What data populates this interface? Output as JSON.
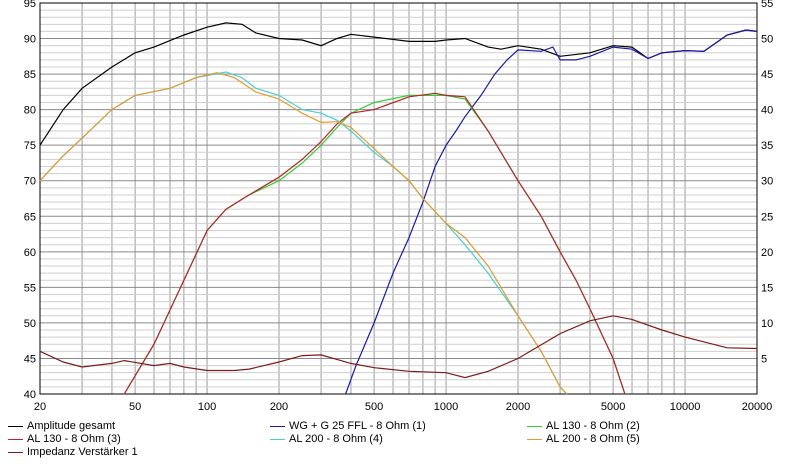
{
  "chart_data": {
    "type": "line",
    "x_scale": "log",
    "xlim": [
      20,
      20000
    ],
    "ylim_left": [
      40,
      95
    ],
    "ylim_right": [
      0,
      55
    ],
    "grid": true,
    "legend_position": "bottom",
    "x_ticks": [
      "20",
      "50",
      "100",
      "200",
      "500",
      "1000",
      "2000",
      "5000",
      "10000",
      "20000"
    ],
    "y_ticks_left": [
      "40",
      "45",
      "50",
      "55",
      "60",
      "65",
      "70",
      "75",
      "80",
      "85",
      "90",
      "95"
    ],
    "y_ticks_right": [
      "5",
      "10",
      "15",
      "20",
      "25",
      "30",
      "35",
      "40",
      "45",
      "50",
      "55"
    ],
    "series": [
      {
        "name": "Amplitude gesamt",
        "color": "#000000",
        "axis": "left",
        "points": [
          [
            20,
            75
          ],
          [
            25,
            80
          ],
          [
            30,
            83
          ],
          [
            40,
            86
          ],
          [
            50,
            88
          ],
          [
            60,
            88.8
          ],
          [
            80,
            90.5
          ],
          [
            100,
            91.6
          ],
          [
            120,
            92.2
          ],
          [
            140,
            92
          ],
          [
            160,
            90.8
          ],
          [
            200,
            90
          ],
          [
            250,
            89.8
          ],
          [
            300,
            89
          ],
          [
            350,
            90
          ],
          [
            400,
            90.6
          ],
          [
            500,
            90.2
          ],
          [
            700,
            89.6
          ],
          [
            900,
            89.6
          ],
          [
            1000,
            89.8
          ],
          [
            1200,
            90
          ],
          [
            1500,
            88.8
          ],
          [
            1700,
            88.5
          ],
          [
            2000,
            89
          ],
          [
            2500,
            88.5
          ],
          [
            3000,
            87.5
          ],
          [
            4000,
            88
          ],
          [
            5000,
            89
          ],
          [
            6000,
            88.8
          ],
          [
            7000,
            87.2
          ],
          [
            8000,
            88
          ],
          [
            10000,
            88.3
          ],
          [
            12000,
            88.2
          ],
          [
            15000,
            90.5
          ],
          [
            18000,
            91.2
          ],
          [
            20000,
            91
          ]
        ]
      },
      {
        "name": "WG + G 25 FFL - 8 Ohm (1)",
        "color": "#1a1aa6",
        "axis": "left",
        "points": [
          [
            380,
            40
          ],
          [
            420,
            44
          ],
          [
            500,
            50
          ],
          [
            600,
            57
          ],
          [
            700,
            62
          ],
          [
            800,
            67
          ],
          [
            900,
            72
          ],
          [
            1000,
            75
          ],
          [
            1100,
            77
          ],
          [
            1200,
            79
          ],
          [
            1400,
            82
          ],
          [
            1600,
            85
          ],
          [
            1800,
            87
          ],
          [
            2000,
            88.4
          ],
          [
            2500,
            88.2
          ],
          [
            2800,
            88.8
          ],
          [
            3000,
            87
          ],
          [
            3500,
            87
          ],
          [
            4000,
            87.5
          ],
          [
            5000,
            88.8
          ],
          [
            6000,
            88.5
          ],
          [
            7000,
            87.2
          ],
          [
            8000,
            88
          ],
          [
            10000,
            88.3
          ],
          [
            12000,
            88.2
          ],
          [
            15000,
            90.5
          ],
          [
            18000,
            91.2
          ],
          [
            20000,
            91
          ]
        ]
      },
      {
        "name": "AL 130 - 8 Ohm (2)",
        "color": "#33cc33",
        "axis": "left",
        "points": [
          [
            45,
            40
          ],
          [
            60,
            47
          ],
          [
            80,
            56
          ],
          [
            100,
            63
          ],
          [
            120,
            66
          ],
          [
            150,
            68
          ],
          [
            200,
            70
          ],
          [
            250,
            72.5
          ],
          [
            300,
            75
          ],
          [
            350,
            77.5
          ],
          [
            400,
            79.5
          ],
          [
            500,
            81
          ],
          [
            700,
            82
          ],
          [
            900,
            82
          ],
          [
            1000,
            82
          ],
          [
            1200,
            81.5
          ],
          [
            1500,
            77
          ],
          [
            2000,
            70
          ],
          [
            2500,
            65
          ],
          [
            3000,
            60
          ],
          [
            3500,
            56
          ],
          [
            4000,
            52
          ],
          [
            5000,
            45
          ],
          [
            5600,
            40
          ]
        ]
      },
      {
        "name": "AL 130 - 8 Ohm (3)",
        "color": "#b3262a",
        "axis": "left",
        "points": [
          [
            45,
            40
          ],
          [
            60,
            47
          ],
          [
            80,
            56
          ],
          [
            100,
            63
          ],
          [
            120,
            66
          ],
          [
            150,
            68
          ],
          [
            200,
            70.5
          ],
          [
            250,
            73
          ],
          [
            300,
            75.5
          ],
          [
            350,
            78
          ],
          [
            400,
            79.5
          ],
          [
            500,
            80
          ],
          [
            700,
            81.8
          ],
          [
            900,
            82.3
          ],
          [
            1000,
            82
          ],
          [
            1200,
            81.8
          ],
          [
            1500,
            77
          ],
          [
            2000,
            70
          ],
          [
            2500,
            65
          ],
          [
            3000,
            60
          ],
          [
            3500,
            56
          ],
          [
            4000,
            52
          ],
          [
            5000,
            45
          ],
          [
            5600,
            40
          ]
        ]
      },
      {
        "name": "AL 200 - 8 Ohm (4)",
        "color": "#46cfd8",
        "axis": "left",
        "points": [
          [
            20,
            70
          ],
          [
            25,
            73.5
          ],
          [
            30,
            76
          ],
          [
            40,
            80
          ],
          [
            50,
            82
          ],
          [
            70,
            83
          ],
          [
            90,
            84.5
          ],
          [
            120,
            85.3
          ],
          [
            140,
            84.5
          ],
          [
            160,
            83
          ],
          [
            200,
            82
          ],
          [
            250,
            80
          ],
          [
            300,
            79.5
          ],
          [
            350,
            78.5
          ],
          [
            400,
            77
          ],
          [
            500,
            74
          ],
          [
            600,
            72
          ],
          [
            700,
            70
          ],
          [
            800,
            67.5
          ],
          [
            1000,
            64
          ],
          [
            1200,
            61
          ],
          [
            1500,
            57
          ],
          [
            2000,
            51
          ],
          [
            2500,
            46
          ],
          [
            3000,
            41
          ],
          [
            3200,
            40
          ]
        ]
      },
      {
        "name": "AL 200 - 8 Ohm (5)",
        "color": "#e39a2e",
        "axis": "left",
        "points": [
          [
            20,
            70
          ],
          [
            25,
            73.5
          ],
          [
            30,
            76
          ],
          [
            40,
            80
          ],
          [
            50,
            82
          ],
          [
            70,
            83
          ],
          [
            90,
            84.5
          ],
          [
            110,
            85.2
          ],
          [
            130,
            84.5
          ],
          [
            160,
            82.5
          ],
          [
            200,
            81.5
          ],
          [
            250,
            79.5
          ],
          [
            300,
            78.2
          ],
          [
            350,
            78.3
          ],
          [
            400,
            77.5
          ],
          [
            500,
            74.5
          ],
          [
            600,
            72
          ],
          [
            700,
            70
          ],
          [
            800,
            67.5
          ],
          [
            1000,
            64
          ],
          [
            1200,
            62
          ],
          [
            1500,
            58
          ],
          [
            2000,
            51
          ],
          [
            2500,
            46
          ],
          [
            3000,
            41
          ],
          [
            3200,
            40
          ]
        ]
      },
      {
        "name": "Impedanz Verstärker 1",
        "color": "#7a1c1c",
        "axis": "right",
        "points": [
          [
            20,
            6
          ],
          [
            25,
            4.5
          ],
          [
            30,
            3.8
          ],
          [
            40,
            4.3
          ],
          [
            45,
            4.7
          ],
          [
            60,
            4
          ],
          [
            70,
            4.3
          ],
          [
            80,
            3.8
          ],
          [
            100,
            3.3
          ],
          [
            130,
            3.3
          ],
          [
            150,
            3.5
          ],
          [
            200,
            4.5
          ],
          [
            250,
            5.4
          ],
          [
            300,
            5.5
          ],
          [
            400,
            4.3
          ],
          [
            500,
            3.7
          ],
          [
            700,
            3.2
          ],
          [
            1000,
            3
          ],
          [
            1200,
            2.3
          ],
          [
            1500,
            3.2
          ],
          [
            2000,
            5
          ],
          [
            3000,
            8.5
          ],
          [
            4000,
            10.3
          ],
          [
            5000,
            11
          ],
          [
            6000,
            10.5
          ],
          [
            8000,
            9
          ],
          [
            10000,
            8
          ],
          [
            15000,
            6.5
          ],
          [
            20000,
            6.4
          ]
        ]
      }
    ]
  }
}
